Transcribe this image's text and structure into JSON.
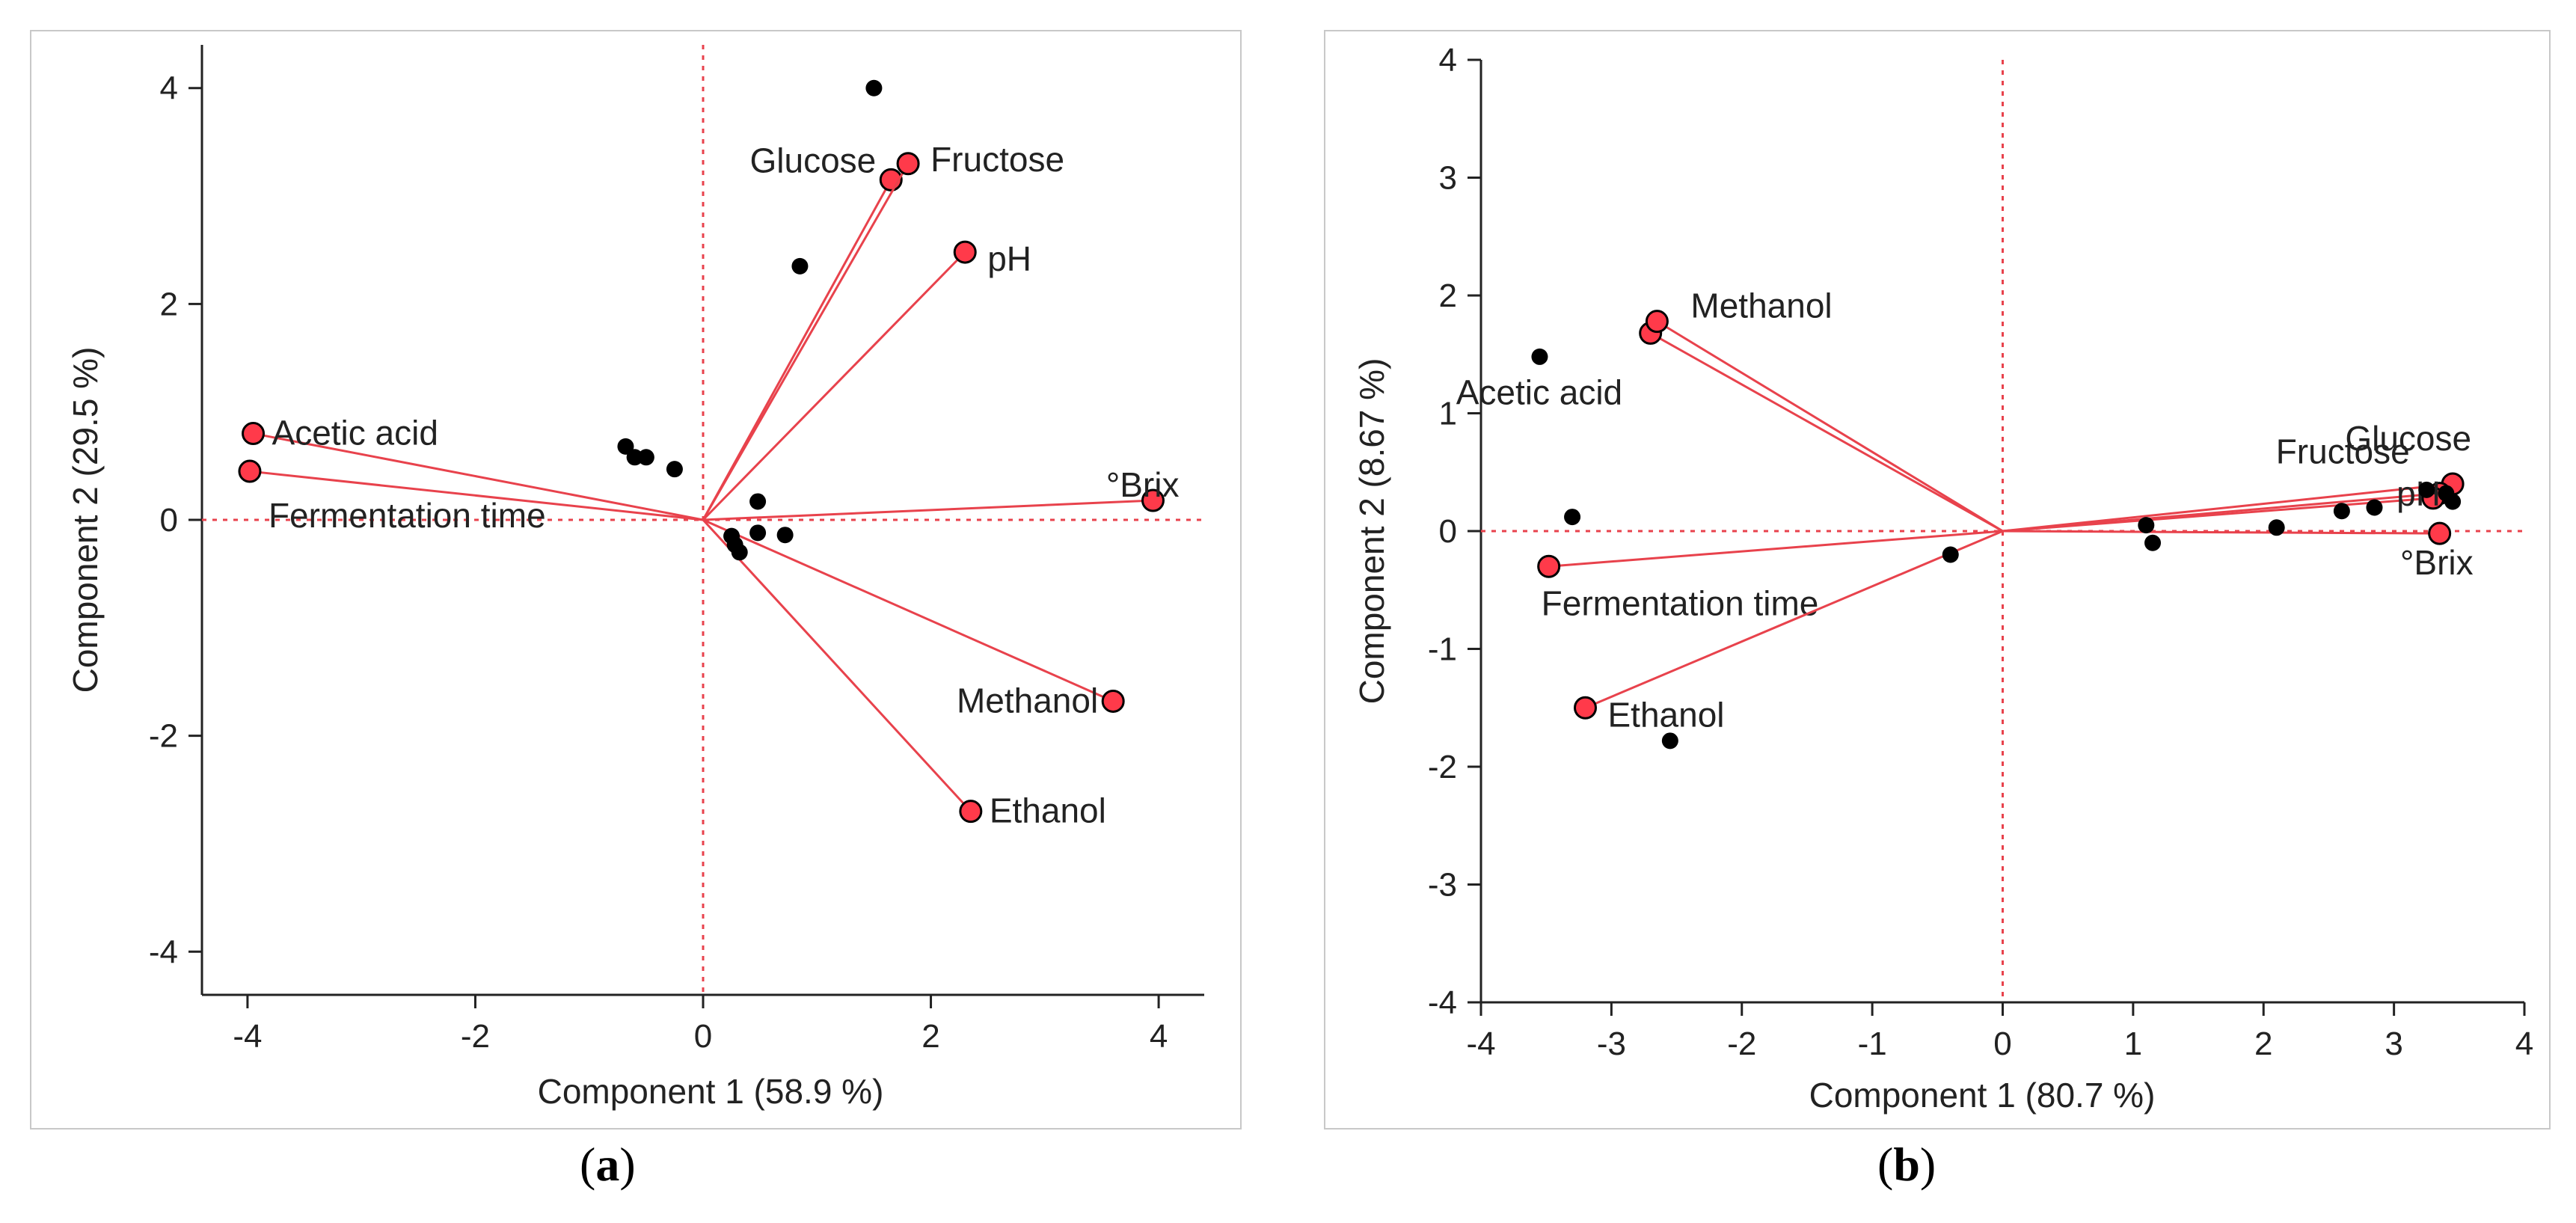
{
  "colors": {
    "arrow": "#e8424c",
    "marker": "#ff3a4a",
    "point": "#000000",
    "origin_line": "#e8424c",
    "axis": "#222222"
  },
  "captions": {
    "a_open": "(",
    "a_letter": "a",
    "a_close": ")",
    "b_open": "(",
    "b_letter": "b",
    "b_close": ")"
  },
  "chart_data": [
    {
      "type": "scatter",
      "subtype": "pca-biplot",
      "panel": "a",
      "xlabel": "Component 1  (58.9 %)",
      "ylabel": "Component 2  (29.5 %)",
      "xlim": [
        -4.4,
        4.4
      ],
      "ylim": [
        -4.4,
        4.4
      ],
      "xticks": [
        -4,
        -2,
        0,
        2,
        4
      ],
      "yticks": [
        -4,
        -2,
        0,
        2,
        4
      ],
      "loadings": [
        {
          "name": "Acetic acid",
          "x": -3.95,
          "y": 0.8
        },
        {
          "name": "Fermentation time",
          "x": -3.98,
          "y": 0.45
        },
        {
          "name": "Glucose",
          "x": 1.65,
          "y": 3.15
        },
        {
          "name": "Fructose",
          "x": 1.8,
          "y": 3.3
        },
        {
          "name": "pH",
          "x": 2.3,
          "y": 2.48
        },
        {
          "name": "°Brix",
          "x": 3.95,
          "y": 0.18
        },
        {
          "name": "Methanol",
          "x": 3.6,
          "y": -1.68
        },
        {
          "name": "Ethanol",
          "x": 2.35,
          "y": -2.7
        }
      ],
      "scores": [
        {
          "x": 1.5,
          "y": 4.0
        },
        {
          "x": 0.85,
          "y": 2.35
        },
        {
          "x": -0.68,
          "y": 0.68
        },
        {
          "x": -0.6,
          "y": 0.58
        },
        {
          "x": -0.5,
          "y": 0.58
        },
        {
          "x": -0.25,
          "y": 0.47
        },
        {
          "x": 0.48,
          "y": 0.17
        },
        {
          "x": 0.25,
          "y": -0.15
        },
        {
          "x": 0.28,
          "y": -0.23
        },
        {
          "x": 0.32,
          "y": -0.3
        },
        {
          "x": 0.48,
          "y": -0.12
        },
        {
          "x": 0.72,
          "y": -0.14
        }
      ]
    },
    {
      "type": "scatter",
      "subtype": "pca-biplot",
      "panel": "b",
      "xlabel": "Component 1  (80.7 %)",
      "ylabel": "Component 2  (8.67 %)",
      "xlim": [
        -4,
        4
      ],
      "ylim": [
        -4,
        4
      ],
      "xticks": [
        -4,
        -3,
        -2,
        -1,
        0,
        1,
        2,
        3,
        4
      ],
      "yticks": [
        -4,
        -3,
        -2,
        -1,
        0,
        1,
        2,
        3,
        4
      ],
      "loadings": [
        {
          "name": "Acetic acid",
          "x": -2.7,
          "y": 1.68
        },
        {
          "name": "Methanol",
          "x": -2.65,
          "y": 1.78
        },
        {
          "name": "Fermentation time",
          "x": -3.48,
          "y": -0.3
        },
        {
          "name": "Ethanol",
          "x": -3.2,
          "y": -1.5
        },
        {
          "name": "Glucose",
          "x": 3.45,
          "y": 0.4
        },
        {
          "name": "Fructose",
          "x": 3.35,
          "y": 0.32
        },
        {
          "name": "pH",
          "x": 3.3,
          "y": 0.28
        },
        {
          "name": "°Brix",
          "x": 3.35,
          "y": -0.02
        }
      ],
      "scores": [
        {
          "x": -3.55,
          "y": 1.48
        },
        {
          "x": -3.3,
          "y": 0.12
        },
        {
          "x": -2.55,
          "y": -1.78
        },
        {
          "x": -0.4,
          "y": -0.2
        },
        {
          "x": 1.1,
          "y": 0.05
        },
        {
          "x": 1.15,
          "y": -0.1
        },
        {
          "x": 2.1,
          "y": 0.03
        },
        {
          "x": 2.6,
          "y": 0.17
        },
        {
          "x": 2.85,
          "y": 0.2
        },
        {
          "x": 3.25,
          "y": 0.35
        },
        {
          "x": 3.4,
          "y": 0.32
        },
        {
          "x": 3.45,
          "y": 0.25
        }
      ]
    }
  ]
}
